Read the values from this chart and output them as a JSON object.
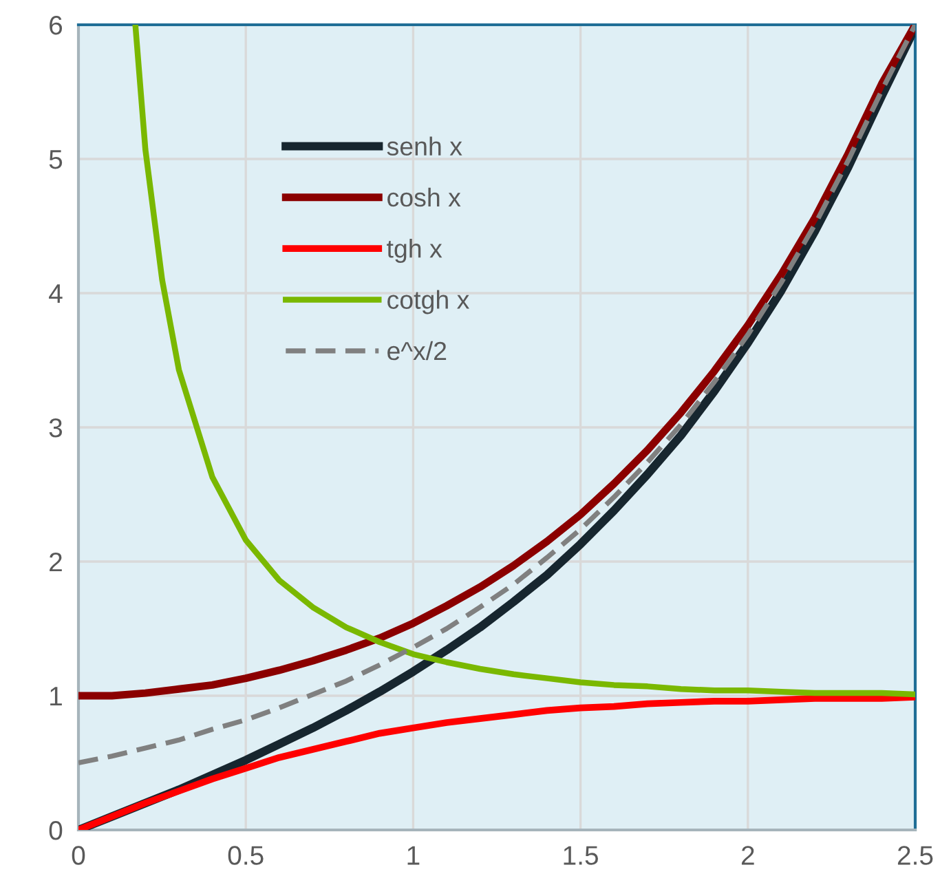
{
  "chart_data": {
    "type": "line",
    "xlim": [
      0,
      2.5
    ],
    "ylim": [
      0,
      6
    ],
    "xticks": [
      0,
      0.5,
      1,
      1.5,
      2,
      2.5
    ],
    "yticks": [
      0,
      1,
      2,
      3,
      4,
      5,
      6
    ],
    "grid": true,
    "legend": "top left",
    "marker": "none",
    "x": [
      0,
      0.1,
      0.2,
      0.3,
      0.4,
      0.5,
      0.6,
      0.7,
      0.8,
      0.9,
      1.0,
      1.1,
      1.2,
      1.3,
      1.4,
      1.5,
      1.6,
      1.7,
      1.8,
      1.9,
      2.0,
      2.1,
      2.2,
      2.3,
      2.4,
      2.5
    ],
    "series": [
      {
        "name": "senh x",
        "color": "#17262f",
        "values": [
          0,
          0.1,
          0.2,
          0.3,
          0.41,
          0.52,
          0.64,
          0.76,
          0.89,
          1.03,
          1.18,
          1.34,
          1.51,
          1.7,
          1.9,
          2.13,
          2.38,
          2.65,
          2.94,
          3.27,
          3.63,
          4.02,
          4.46,
          4.94,
          5.47,
          5.98
        ]
      },
      {
        "name": "cosh x",
        "color": "#8b0000",
        "values": [
          1,
          1.0,
          1.02,
          1.05,
          1.08,
          1.13,
          1.19,
          1.26,
          1.34,
          1.43,
          1.54,
          1.67,
          1.81,
          1.97,
          2.15,
          2.35,
          2.58,
          2.83,
          3.11,
          3.42,
          3.76,
          4.14,
          4.56,
          5.04,
          5.56,
          6.0
        ]
      },
      {
        "name": "tgh x",
        "color": "#ff0000",
        "values": [
          0,
          0.1,
          0.2,
          0.29,
          0.38,
          0.46,
          0.54,
          0.6,
          0.66,
          0.72,
          0.76,
          0.8,
          0.83,
          0.86,
          0.89,
          0.91,
          0.92,
          0.94,
          0.95,
          0.96,
          0.96,
          0.97,
          0.98,
          0.98,
          0.98,
          0.99
        ]
      },
      {
        "name": "cotgh x",
        "color": "#7ab800",
        "x": [
          0.17,
          0.2,
          0.25,
          0.3,
          0.4,
          0.5,
          0.6,
          0.7,
          0.8,
          0.9,
          1.0,
          1.1,
          1.2,
          1.3,
          1.4,
          1.5,
          1.6,
          1.7,
          1.8,
          1.9,
          2.0,
          2.1,
          2.2,
          2.3,
          2.4,
          2.5
        ],
        "values": [
          6.0,
          5.07,
          4.1,
          3.43,
          2.63,
          2.16,
          1.86,
          1.66,
          1.51,
          1.4,
          1.31,
          1.25,
          1.2,
          1.16,
          1.13,
          1.1,
          1.08,
          1.07,
          1.05,
          1.04,
          1.04,
          1.03,
          1.02,
          1.02,
          1.02,
          1.01
        ]
      },
      {
        "name": "e^x/2",
        "color": "#808080",
        "line_style": "dashed",
        "values": [
          0.5,
          0.55,
          0.61,
          0.67,
          0.75,
          0.82,
          0.91,
          1.01,
          1.11,
          1.23,
          1.36,
          1.5,
          1.66,
          1.83,
          2.03,
          2.24,
          2.48,
          2.74,
          3.02,
          3.34,
          3.69,
          4.08,
          4.51,
          4.99,
          5.51,
          6.0
        ]
      }
    ]
  }
}
